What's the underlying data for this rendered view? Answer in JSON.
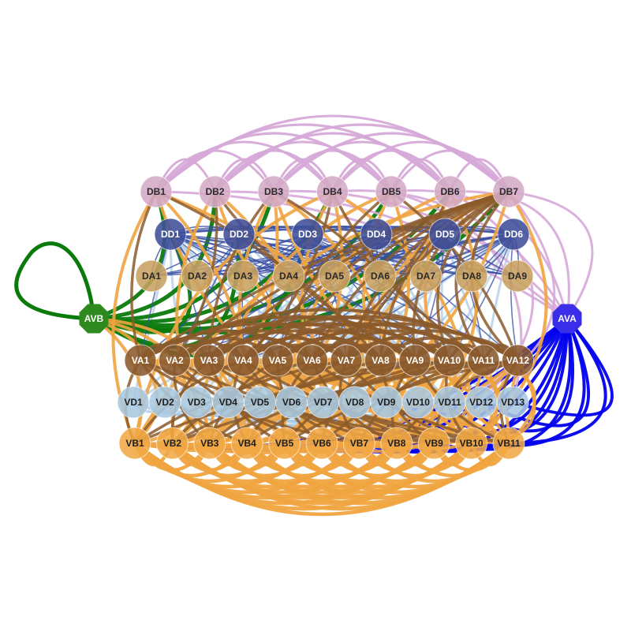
{
  "colors": {
    "dd": "#3f4f9a",
    "db": "#d4aac6",
    "da": "#c8a060",
    "va": "#8a5a2e",
    "vd": "#a9c8e0",
    "vb": "#f0a845",
    "avb": "#2e8a1e",
    "ava": "#3b2ee8",
    "edge_green": "#0a7a0a",
    "edge_blue": "#0000ee",
    "edge_pink": "#d6a9d8",
    "edge_orange": "#f0a440",
    "edge_brown": "#8b5a2b",
    "edge_navy": "#3a4fa3",
    "edge_lightblue": "#a8c8e4"
  },
  "nodes": {
    "DB": [
      "DB1",
      "DB2",
      "DB3",
      "DB4",
      "DB5",
      "DB6",
      "DB7"
    ],
    "DD": [
      "DD1",
      "DD2",
      "DD3",
      "DD4",
      "DD5",
      "DD6"
    ],
    "DA": [
      "DA1",
      "DA2",
      "DA3",
      "DA4",
      "DA5",
      "DA6",
      "DA7",
      "DA8",
      "DA9"
    ],
    "VA": [
      "VA1",
      "VA2",
      "VA3",
      "VA4",
      "VA5",
      "VA6",
      "VA7",
      "VA8",
      "VA9",
      "VA10",
      "VA11",
      "VA12"
    ],
    "VD": [
      "VD1",
      "VD2",
      "VD3",
      "VD4",
      "VD5",
      "VD6",
      "VD7",
      "VD8",
      "VD9",
      "VD10",
      "VD11",
      "VD12",
      "VD13"
    ],
    "VB": [
      "VB1",
      "VB2",
      "VB3",
      "VB4",
      "VB5",
      "VB6",
      "VB7",
      "VB8",
      "VB9",
      "VB10",
      "VB11"
    ],
    "AVB": "AVB",
    "AVA": "AVA"
  }
}
